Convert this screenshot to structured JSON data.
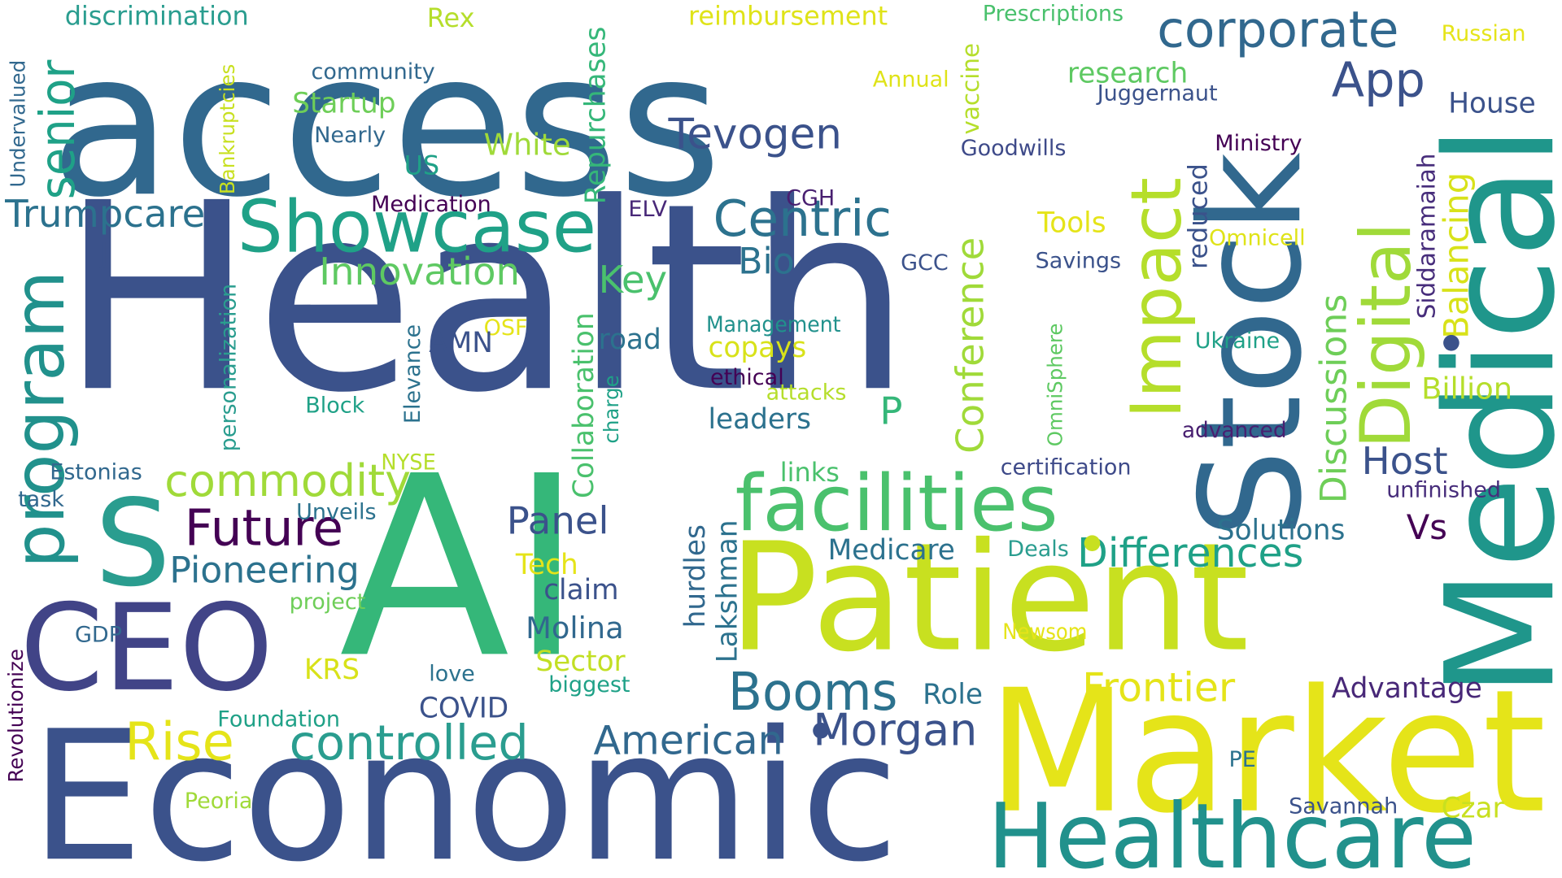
{
  "background": "#ffffff",
  "words": [
    {
      "text": "access",
      "color": "#31688e"
    },
    {
      "text": "Health",
      "color": "#3b528b"
    },
    {
      "text": "AI",
      "color": "#35b779"
    },
    {
      "text": "Economic",
      "color": "#3b528b"
    },
    {
      "text": "Patient",
      "color": "#c8e020"
    },
    {
      "text": "Market",
      "color": "#e5e419"
    },
    {
      "text": "Medical",
      "color": "#1f968b"
    },
    {
      "text": "Stock",
      "color": "#31688e"
    },
    {
      "text": "CEO",
      "color": "#414487"
    },
    {
      "text": "Healthcare",
      "color": "#21918c"
    },
    {
      "text": "S",
      "color": "#2a9d8f"
    },
    {
      "text": "program",
      "color": "#21918c"
    },
    {
      "text": "Showcase",
      "color": "#1fa187"
    },
    {
      "text": "Digital",
      "color": "#a0da39"
    },
    {
      "text": "facilities",
      "color": "#4ac16d"
    },
    {
      "text": "corporate",
      "color": "#31688e"
    },
    {
      "text": "Impact",
      "color": "#b5de2b"
    },
    {
      "text": "Future",
      "color": "#440154"
    },
    {
      "text": "controlled",
      "color": "#2a9d8f"
    },
    {
      "text": "Rise",
      "color": "#e5e419"
    },
    {
      "text": "Booms",
      "color": "#2c728e"
    },
    {
      "text": "Centric",
      "color": "#2c728e"
    },
    {
      "text": "Tevogen",
      "color": "#3b528b"
    },
    {
      "text": "senior",
      "color": "#1fa187"
    },
    {
      "text": "commodity",
      "color": "#a0da39"
    },
    {
      "text": "Morgan",
      "color": "#3b528b"
    },
    {
      "text": "American",
      "color": "#31688e"
    },
    {
      "text": "Frontier",
      "color": "#e5e419"
    },
    {
      "text": "Differences",
      "color": "#1fa187"
    },
    {
      "text": "Conference",
      "color": "#a0da39"
    },
    {
      "text": "Discussions",
      "color": "#6ece58"
    },
    {
      "text": "App",
      "color": "#3b528b"
    },
    {
      "text": "Trumpcare",
      "color": "#2c728e"
    },
    {
      "text": "Innovation",
      "color": "#5ec962"
    },
    {
      "text": "Pioneering",
      "color": "#2c728e"
    },
    {
      "text": "Panel",
      "color": "#3b528b"
    },
    {
      "text": "Host",
      "color": "#3b528b"
    },
    {
      "text": "Key",
      "color": "#4ac16d"
    },
    {
      "text": "Bio",
      "color": "#2c728e"
    },
    {
      "text": "Balancing",
      "color": "#d8e219"
    },
    {
      "text": "Siddaramaiah",
      "color": "#472d7b"
    },
    {
      "text": "Molina",
      "color": "#31688e"
    },
    {
      "text": "Repurchases",
      "color": "#35b779"
    },
    {
      "text": "Collaboration",
      "color": "#4ac16d"
    },
    {
      "text": "Lakshman",
      "color": "#2c728e"
    },
    {
      "text": "hurdles",
      "color": "#31688e"
    },
    {
      "text": "Advantage",
      "color": "#482878"
    },
    {
      "text": "Solutions",
      "color": "#2c728e"
    },
    {
      "text": "Billion",
      "color": "#b5de2b"
    },
    {
      "text": "House",
      "color": "#3b528b"
    },
    {
      "text": "research",
      "color": "#5ec962"
    },
    {
      "text": "Startup",
      "color": "#6ece58"
    },
    {
      "text": "White",
      "color": "#a0da39"
    },
    {
      "text": "COVID",
      "color": "#3b528b"
    },
    {
      "text": "Medicare",
      "color": "#2c728e"
    },
    {
      "text": "leaders",
      "color": "#2c728e"
    },
    {
      "text": "Sector",
      "color": "#c2df23"
    },
    {
      "text": "claim",
      "color": "#3b528b"
    },
    {
      "text": "Tech",
      "color": "#e5e419"
    },
    {
      "text": "copays",
      "color": "#d8e219"
    },
    {
      "text": "road",
      "color": "#2c728e"
    },
    {
      "text": "Role",
      "color": "#2c728e"
    },
    {
      "text": "Czar",
      "color": "#c8e020"
    },
    {
      "text": "Vs",
      "color": "#440154"
    },
    {
      "text": "P",
      "color": "#35b779"
    },
    {
      "text": "reduced",
      "color": "#3b528b"
    },
    {
      "text": "discrimination",
      "color": "#2a9d8f"
    },
    {
      "text": "Rex",
      "color": "#b5de2b"
    },
    {
      "text": "reimbursement",
      "color": "#dfe318"
    },
    {
      "text": "vaccine",
      "color": "#b5de2b"
    },
    {
      "text": "Prescriptions",
      "color": "#4ac16d"
    },
    {
      "text": "Russian",
      "color": "#e5e419"
    },
    {
      "text": "Juggernaut",
      "color": "#3b528b"
    },
    {
      "text": "Annual",
      "color": "#dfe318"
    },
    {
      "text": "community",
      "color": "#31688e"
    },
    {
      "text": "Nearly",
      "color": "#31688e"
    },
    {
      "text": "US",
      "color": "#1fa187"
    },
    {
      "text": "Undervalued",
      "color": "#31688e"
    },
    {
      "text": "Bankruptcies",
      "color": "#c8e020"
    },
    {
      "text": "Goodwills",
      "color": "#3e4a89"
    },
    {
      "text": "Ministry",
      "color": "#440154"
    },
    {
      "text": "Medication",
      "color": "#440154"
    },
    {
      "text": "CGH",
      "color": "#481f70"
    },
    {
      "text": "ELV",
      "color": "#482878"
    },
    {
      "text": "Tools",
      "color": "#e5e419"
    },
    {
      "text": "Omnicell",
      "color": "#dfe318"
    },
    {
      "text": "GCC",
      "color": "#3b528b"
    },
    {
      "text": "Savings",
      "color": "#3b528b"
    },
    {
      "text": "J",
      "color": "#3b528b"
    },
    {
      "text": "personalization",
      "color": "#2a9d8f"
    },
    {
      "text": "Elevance",
      "color": "#2c728e"
    },
    {
      "text": "OSF",
      "color": "#e5e419"
    },
    {
      "text": "AMN",
      "color": "#3b528b"
    },
    {
      "text": "Management",
      "color": "#21918c"
    },
    {
      "text": "ethical",
      "color": "#440154"
    },
    {
      "text": "attacks",
      "color": "#b5de2b"
    },
    {
      "text": "OmniSphere",
      "color": "#5ec962"
    },
    {
      "text": "Ukraine",
      "color": "#1fa187"
    },
    {
      "text": "advanced",
      "color": "#481f70"
    },
    {
      "text": "certification",
      "color": "#3e4a89"
    },
    {
      "text": "unfinished",
      "color": "#472d7b"
    },
    {
      "text": "Block",
      "color": "#1fa187"
    },
    {
      "text": "charge",
      "color": "#1fa187"
    },
    {
      "text": "NYSE",
      "color": "#b5de2b"
    },
    {
      "text": "links",
      "color": "#4ac16d"
    },
    {
      "text": "Estonias",
      "color": "#31688e"
    },
    {
      "text": "task",
      "color": "#31688e"
    },
    {
      "text": "Unveils",
      "color": "#2c728e"
    },
    {
      "text": "Deals",
      "color": "#2a9d8f"
    },
    {
      "text": "project",
      "color": "#6ece58"
    },
    {
      "text": "GDP",
      "color": "#31688e"
    },
    {
      "text": "KRS",
      "color": "#d8e219"
    },
    {
      "text": "love",
      "color": "#2c728e"
    },
    {
      "text": "biggest",
      "color": "#1fa187"
    },
    {
      "text": "Newsom",
      "color": "#e5e419"
    },
    {
      "text": "Revolutionize",
      "color": "#440154"
    },
    {
      "text": "Foundation",
      "color": "#1fa187"
    },
    {
      "text": "PE",
      "color": "#2c728e"
    },
    {
      "text": "Savannah",
      "color": "#3b528b"
    },
    {
      "text": "Peoria",
      "color": "#a0da39"
    }
  ]
}
